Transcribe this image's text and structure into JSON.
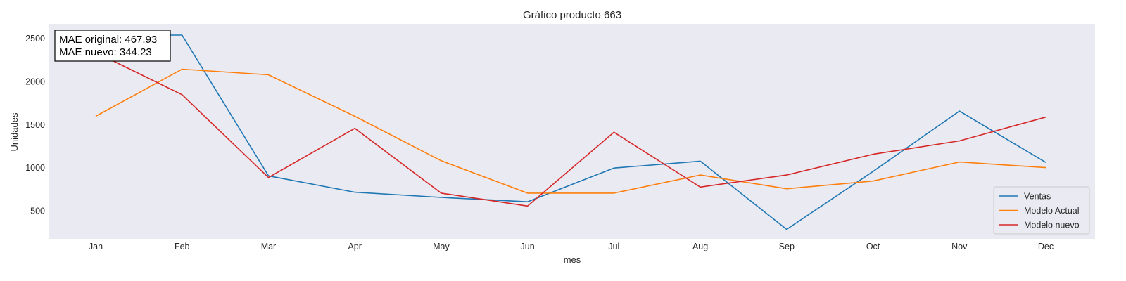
{
  "chart_data": {
    "type": "line",
    "title": "Gráfico producto 663",
    "xlabel": "mes",
    "ylabel": "Unidades",
    "categories": [
      "Jan",
      "Feb",
      "Mar",
      "Apr",
      "May",
      "Jun",
      "Jul",
      "Aug",
      "Sep",
      "Oct",
      "Nov",
      "Dec"
    ],
    "yticks": [
      500,
      1000,
      1500,
      2000,
      2500
    ],
    "ylim": [
      180,
      2670
    ],
    "grid": false,
    "legend_position": "lower-right",
    "series": [
      {
        "name": "Ventas",
        "color": "#1f77b4",
        "values": [
          2540,
          2540,
          910,
          720,
          660,
          610,
          1000,
          1080,
          290,
          960,
          1660,
          1065
        ]
      },
      {
        "name": "Modelo Actual",
        "color": "#ff7f0e",
        "values": [
          1600,
          2145,
          2080,
          1600,
          1085,
          710,
          710,
          920,
          760,
          850,
          1070,
          1005
        ]
      },
      {
        "name": "Modelo nuevo",
        "color": "#d62728",
        "values": [
          2340,
          1850,
          890,
          1460,
          710,
          560,
          1415,
          780,
          920,
          1160,
          1315,
          1590
        ]
      }
    ],
    "annotation": {
      "lines": [
        "MAE original: 467.93",
        "MAE nuevo: 344.23"
      ]
    }
  }
}
